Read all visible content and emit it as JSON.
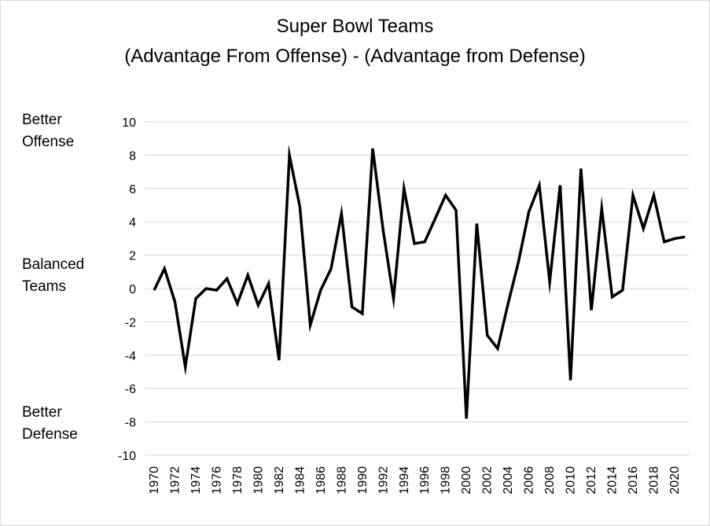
{
  "chart_data": {
    "type": "line",
    "title": "Super Bowl Teams",
    "subtitle": "(Advantage From Offense) - (Advantage from Defense)",
    "xlabel": "",
    "ylabel": "",
    "side_labels": [
      {
        "line1": "Better",
        "line2": "Offense"
      },
      {
        "line1": "Balanced",
        "line2": "Teams"
      },
      {
        "line1": "Better",
        "line2": "Defense"
      }
    ],
    "ylim": [
      -10,
      10
    ],
    "yticks": [
      10,
      8,
      6,
      4,
      2,
      0,
      -2,
      -4,
      -6,
      -8,
      -10
    ],
    "grid": true,
    "x": [
      1970,
      1971,
      1972,
      1973,
      1974,
      1975,
      1976,
      1977,
      1978,
      1979,
      1980,
      1981,
      1982,
      1983,
      1984,
      1985,
      1986,
      1987,
      1988,
      1989,
      1990,
      1991,
      1992,
      1993,
      1994,
      1995,
      1996,
      1997,
      1998,
      1999,
      2000,
      2001,
      2002,
      2003,
      2004,
      2005,
      2006,
      2007,
      2008,
      2009,
      2010,
      2011,
      2012,
      2013,
      2014,
      2015,
      2016,
      2017,
      2018,
      2019,
      2020,
      2021
    ],
    "xticks": [
      1970,
      1972,
      1974,
      1976,
      1978,
      1980,
      1982,
      1984,
      1986,
      1988,
      1990,
      1992,
      1994,
      1996,
      1998,
      2000,
      2002,
      2004,
      2006,
      2008,
      2010,
      2012,
      2014,
      2016,
      2018,
      2020
    ],
    "series": [
      {
        "name": "Offense minus Defense advantage",
        "color": "#000000",
        "values": [
          -0.1,
          1.2,
          -0.8,
          -4.7,
          -0.6,
          0.0,
          -0.1,
          0.6,
          -0.9,
          0.8,
          -1.0,
          0.3,
          -4.3,
          8.0,
          4.9,
          -2.2,
          -0.1,
          1.2,
          4.5,
          -1.1,
          -1.5,
          8.4,
          3.5,
          -0.6,
          6.0,
          2.7,
          2.8,
          4.2,
          5.6,
          4.7,
          -7.8,
          3.9,
          -2.8,
          -3.6,
          -0.9,
          1.6,
          4.6,
          6.2,
          0.4,
          6.2,
          -5.5,
          7.2,
          -1.3,
          4.8,
          -0.5,
          -0.1,
          5.6,
          3.6,
          5.6,
          2.8,
          3.0,
          3.1
        ]
      }
    ]
  }
}
